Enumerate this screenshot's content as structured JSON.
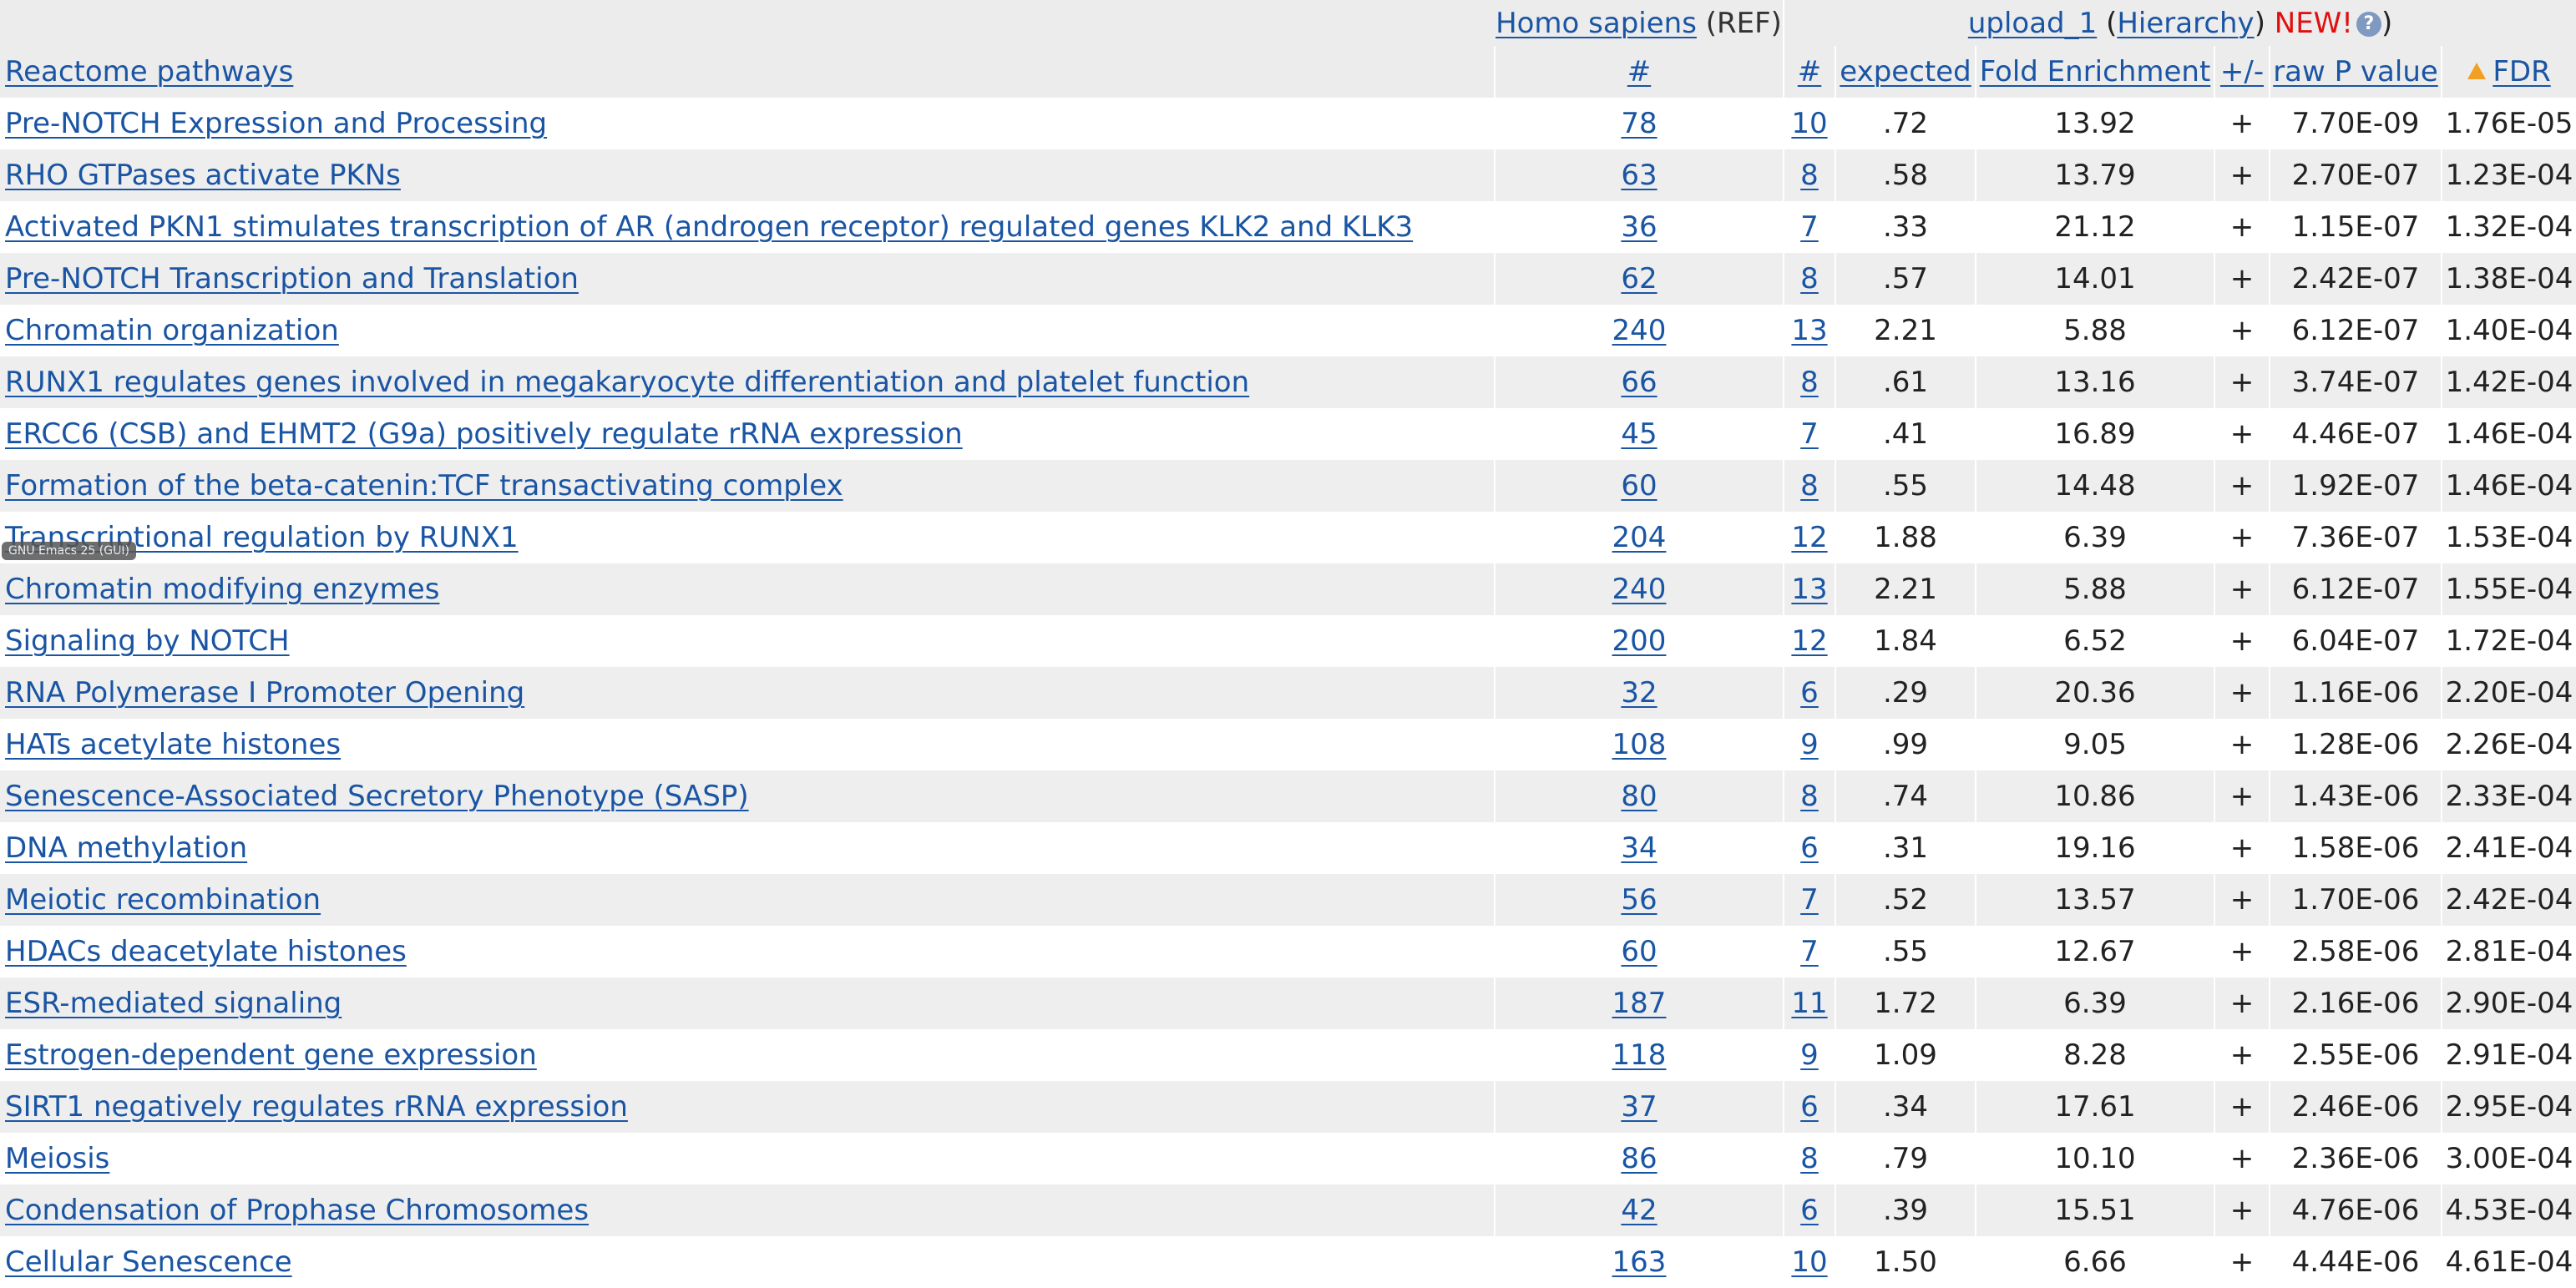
{
  "header": {
    "ref_organism": "Homo sapiens",
    "ref_suffix": "(REF)",
    "upload_name": "upload_1",
    "open_paren": "(",
    "hierarchy": "Hierarchy",
    "close_paren": ")",
    "new_badge": "NEW!",
    "help_icon_label": "?",
    "close_paren_end": ")"
  },
  "columns": {
    "name": "Reactome pathways",
    "ref_count": "#",
    "count": "#",
    "expected": "expected",
    "fold": "Fold Enrichment",
    "direction": "+/-",
    "raw_p": "raw P value",
    "fdr": "FDR",
    "fdr_sort_icon": "sort-ascending-warning-triangle"
  },
  "rows": [
    {
      "name": "Pre-NOTCH Expression and Processing",
      "ref": "78",
      "count": "10",
      "expected": ".72",
      "fold": "13.92",
      "direction": "+",
      "raw_p": "7.70E-09",
      "fdr": "1.76E-05"
    },
    {
      "name": "RHO GTPases activate PKNs",
      "ref": "63",
      "count": "8",
      "expected": ".58",
      "fold": "13.79",
      "direction": "+",
      "raw_p": "2.70E-07",
      "fdr": "1.23E-04"
    },
    {
      "name": "Activated PKN1 stimulates transcription of AR (androgen receptor) regulated genes KLK2 and KLK3",
      "ref": "36",
      "count": "7",
      "expected": ".33",
      "fold": "21.12",
      "direction": "+",
      "raw_p": "1.15E-07",
      "fdr": "1.32E-04"
    },
    {
      "name": "Pre-NOTCH Transcription and Translation",
      "ref": "62",
      "count": "8",
      "expected": ".57",
      "fold": "14.01",
      "direction": "+",
      "raw_p": "2.42E-07",
      "fdr": "1.38E-04"
    },
    {
      "name": "Chromatin organization",
      "ref": "240",
      "count": "13",
      "expected": "2.21",
      "fold": "5.88",
      "direction": "+",
      "raw_p": "6.12E-07",
      "fdr": "1.40E-04"
    },
    {
      "name": "RUNX1 regulates genes involved in megakaryocyte differentiation and platelet function",
      "ref": "66",
      "count": "8",
      "expected": ".61",
      "fold": "13.16",
      "direction": "+",
      "raw_p": "3.74E-07",
      "fdr": "1.42E-04"
    },
    {
      "name": "ERCC6 (CSB) and EHMT2 (G9a) positively regulate rRNA expression",
      "ref": "45",
      "count": "7",
      "expected": ".41",
      "fold": "16.89",
      "direction": "+",
      "raw_p": "4.46E-07",
      "fdr": "1.46E-04"
    },
    {
      "name": "Formation of the beta-catenin:TCF transactivating complex",
      "ref": "60",
      "count": "8",
      "expected": ".55",
      "fold": "14.48",
      "direction": "+",
      "raw_p": "1.92E-07",
      "fdr": "1.46E-04"
    },
    {
      "name": "Transcriptional regulation by RUNX1",
      "ref": "204",
      "count": "12",
      "expected": "1.88",
      "fold": "6.39",
      "direction": "+",
      "raw_p": "7.36E-07",
      "fdr": "1.53E-04"
    },
    {
      "name": "Chromatin modifying enzymes",
      "ref": "240",
      "count": "13",
      "expected": "2.21",
      "fold": "5.88",
      "direction": "+",
      "raw_p": "6.12E-07",
      "fdr": "1.55E-04"
    },
    {
      "name": "Signaling by NOTCH",
      "ref": "200",
      "count": "12",
      "expected": "1.84",
      "fold": "6.52",
      "direction": "+",
      "raw_p": "6.04E-07",
      "fdr": "1.72E-04"
    },
    {
      "name": "RNA Polymerase I Promoter Opening",
      "ref": "32",
      "count": "6",
      "expected": ".29",
      "fold": "20.36",
      "direction": "+",
      "raw_p": "1.16E-06",
      "fdr": "2.20E-04"
    },
    {
      "name": "HATs acetylate histones",
      "ref": "108",
      "count": "9",
      "expected": ".99",
      "fold": "9.05",
      "direction": "+",
      "raw_p": "1.28E-06",
      "fdr": "2.26E-04"
    },
    {
      "name": "Senescence-Associated Secretory Phenotype (SASP)",
      "ref": "80",
      "count": "8",
      "expected": ".74",
      "fold": "10.86",
      "direction": "+",
      "raw_p": "1.43E-06",
      "fdr": "2.33E-04"
    },
    {
      "name": "DNA methylation",
      "ref": "34",
      "count": "6",
      "expected": ".31",
      "fold": "19.16",
      "direction": "+",
      "raw_p": "1.58E-06",
      "fdr": "2.41E-04"
    },
    {
      "name": "Meiotic recombination",
      "ref": "56",
      "count": "7",
      "expected": ".52",
      "fold": "13.57",
      "direction": "+",
      "raw_p": "1.70E-06",
      "fdr": "2.42E-04"
    },
    {
      "name": "HDACs deacetylate histones",
      "ref": "60",
      "count": "7",
      "expected": ".55",
      "fold": "12.67",
      "direction": "+",
      "raw_p": "2.58E-06",
      "fdr": "2.81E-04"
    },
    {
      "name": "ESR-mediated signaling",
      "ref": "187",
      "count": "11",
      "expected": "1.72",
      "fold": "6.39",
      "direction": "+",
      "raw_p": "2.16E-06",
      "fdr": "2.90E-04"
    },
    {
      "name": "Estrogen-dependent gene expression",
      "ref": "118",
      "count": "9",
      "expected": "1.09",
      "fold": "8.28",
      "direction": "+",
      "raw_p": "2.55E-06",
      "fdr": "2.91E-04"
    },
    {
      "name": "SIRT1 negatively regulates rRNA expression",
      "ref": "37",
      "count": "6",
      "expected": ".34",
      "fold": "17.61",
      "direction": "+",
      "raw_p": "2.46E-06",
      "fdr": "2.95E-04"
    },
    {
      "name": "Meiosis",
      "ref": "86",
      "count": "8",
      "expected": ".79",
      "fold": "10.10",
      "direction": "+",
      "raw_p": "2.36E-06",
      "fdr": "3.00E-04"
    },
    {
      "name": "Condensation of Prophase Chromosomes",
      "ref": "42",
      "count": "6",
      "expected": ".39",
      "fold": "15.51",
      "direction": "+",
      "raw_p": "4.76E-06",
      "fdr": "4.53E-04"
    },
    {
      "name": "Cellular Senescence",
      "ref": "163",
      "count": "10",
      "expected": "1.50",
      "fold": "6.66",
      "direction": "+",
      "raw_p": "4.44E-06",
      "fdr": "4.61E-04"
    }
  ],
  "tooltip": "GNU Emacs 25 (GUI)",
  "colors": {
    "link": "#1a55a4",
    "row_alt": "#eeeeee",
    "header_bg": "#ececec",
    "new_badge": "#e01010",
    "sort_icon": "#f2a024"
  }
}
